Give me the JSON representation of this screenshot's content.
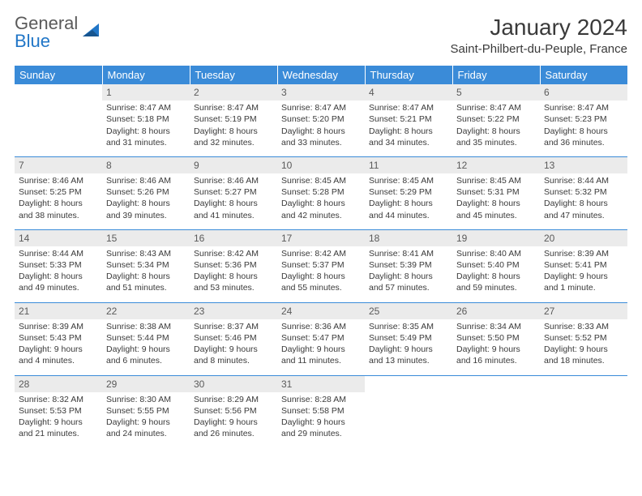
{
  "logo": {
    "line1": "General",
    "line2": "Blue"
  },
  "title": "January 2024",
  "location": "Saint-Philbert-du-Peuple, France",
  "colors": {
    "header_bg": "#3a8bd8",
    "header_text": "#ffffff",
    "daynum_bg": "#ebebeb",
    "rule": "#3a8bd8",
    "logo_gray": "#5a5a5a",
    "logo_blue": "#2176c7"
  },
  "dayHeaders": [
    "Sunday",
    "Monday",
    "Tuesday",
    "Wednesday",
    "Thursday",
    "Friday",
    "Saturday"
  ],
  "weeks": [
    [
      null,
      {
        "n": "1",
        "sr": "8:47 AM",
        "ss": "5:18 PM",
        "dl": "8 hours and 31 minutes."
      },
      {
        "n": "2",
        "sr": "8:47 AM",
        "ss": "5:19 PM",
        "dl": "8 hours and 32 minutes."
      },
      {
        "n": "3",
        "sr": "8:47 AM",
        "ss": "5:20 PM",
        "dl": "8 hours and 33 minutes."
      },
      {
        "n": "4",
        "sr": "8:47 AM",
        "ss": "5:21 PM",
        "dl": "8 hours and 34 minutes."
      },
      {
        "n": "5",
        "sr": "8:47 AM",
        "ss": "5:22 PM",
        "dl": "8 hours and 35 minutes."
      },
      {
        "n": "6",
        "sr": "8:47 AM",
        "ss": "5:23 PM",
        "dl": "8 hours and 36 minutes."
      }
    ],
    [
      {
        "n": "7",
        "sr": "8:46 AM",
        "ss": "5:25 PM",
        "dl": "8 hours and 38 minutes."
      },
      {
        "n": "8",
        "sr": "8:46 AM",
        "ss": "5:26 PM",
        "dl": "8 hours and 39 minutes."
      },
      {
        "n": "9",
        "sr": "8:46 AM",
        "ss": "5:27 PM",
        "dl": "8 hours and 41 minutes."
      },
      {
        "n": "10",
        "sr": "8:45 AM",
        "ss": "5:28 PM",
        "dl": "8 hours and 42 minutes."
      },
      {
        "n": "11",
        "sr": "8:45 AM",
        "ss": "5:29 PM",
        "dl": "8 hours and 44 minutes."
      },
      {
        "n": "12",
        "sr": "8:45 AM",
        "ss": "5:31 PM",
        "dl": "8 hours and 45 minutes."
      },
      {
        "n": "13",
        "sr": "8:44 AM",
        "ss": "5:32 PM",
        "dl": "8 hours and 47 minutes."
      }
    ],
    [
      {
        "n": "14",
        "sr": "8:44 AM",
        "ss": "5:33 PM",
        "dl": "8 hours and 49 minutes."
      },
      {
        "n": "15",
        "sr": "8:43 AM",
        "ss": "5:34 PM",
        "dl": "8 hours and 51 minutes."
      },
      {
        "n": "16",
        "sr": "8:42 AM",
        "ss": "5:36 PM",
        "dl": "8 hours and 53 minutes."
      },
      {
        "n": "17",
        "sr": "8:42 AM",
        "ss": "5:37 PM",
        "dl": "8 hours and 55 minutes."
      },
      {
        "n": "18",
        "sr": "8:41 AM",
        "ss": "5:39 PM",
        "dl": "8 hours and 57 minutes."
      },
      {
        "n": "19",
        "sr": "8:40 AM",
        "ss": "5:40 PM",
        "dl": "8 hours and 59 minutes."
      },
      {
        "n": "20",
        "sr": "8:39 AM",
        "ss": "5:41 PM",
        "dl": "9 hours and 1 minute."
      }
    ],
    [
      {
        "n": "21",
        "sr": "8:39 AM",
        "ss": "5:43 PM",
        "dl": "9 hours and 4 minutes."
      },
      {
        "n": "22",
        "sr": "8:38 AM",
        "ss": "5:44 PM",
        "dl": "9 hours and 6 minutes."
      },
      {
        "n": "23",
        "sr": "8:37 AM",
        "ss": "5:46 PM",
        "dl": "9 hours and 8 minutes."
      },
      {
        "n": "24",
        "sr": "8:36 AM",
        "ss": "5:47 PM",
        "dl": "9 hours and 11 minutes."
      },
      {
        "n": "25",
        "sr": "8:35 AM",
        "ss": "5:49 PM",
        "dl": "9 hours and 13 minutes."
      },
      {
        "n": "26",
        "sr": "8:34 AM",
        "ss": "5:50 PM",
        "dl": "9 hours and 16 minutes."
      },
      {
        "n": "27",
        "sr": "8:33 AM",
        "ss": "5:52 PM",
        "dl": "9 hours and 18 minutes."
      }
    ],
    [
      {
        "n": "28",
        "sr": "8:32 AM",
        "ss": "5:53 PM",
        "dl": "9 hours and 21 minutes."
      },
      {
        "n": "29",
        "sr": "8:30 AM",
        "ss": "5:55 PM",
        "dl": "9 hours and 24 minutes."
      },
      {
        "n": "30",
        "sr": "8:29 AM",
        "ss": "5:56 PM",
        "dl": "9 hours and 26 minutes."
      },
      {
        "n": "31",
        "sr": "8:28 AM",
        "ss": "5:58 PM",
        "dl": "9 hours and 29 minutes."
      },
      null,
      null,
      null
    ]
  ],
  "labels": {
    "sunrise": "Sunrise: ",
    "sunset": "Sunset: ",
    "daylight": "Daylight: "
  }
}
